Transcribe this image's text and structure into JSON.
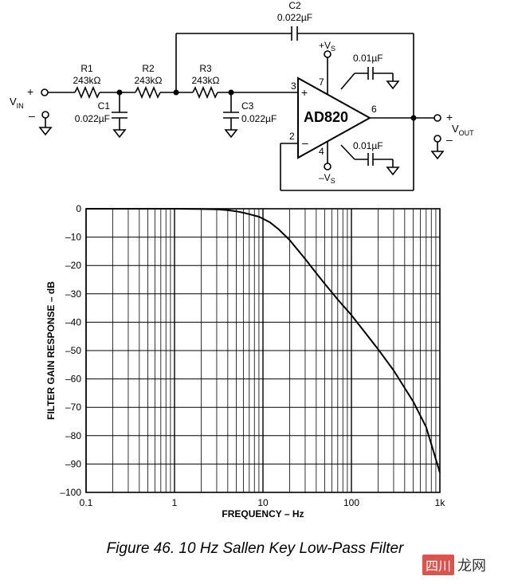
{
  "circuit": {
    "c2": {
      "name": "C2",
      "value": "0.022µF"
    },
    "r1": {
      "name": "R1",
      "value": "243kΩ"
    },
    "r2": {
      "name": "R2",
      "value": "243kΩ"
    },
    "r3": {
      "name": "R3",
      "value": "243kΩ"
    },
    "c1": {
      "name": "C1",
      "value": "0.022µF"
    },
    "c3": {
      "name": "C3",
      "value": "0.022µF"
    },
    "opamp": "AD820",
    "pins": {
      "p3": "3",
      "p2": "2",
      "p7": "7",
      "p4": "4",
      "p6": "6"
    },
    "vplus": "+V",
    "vminus": "–V",
    "supply_sub": "S",
    "decap_top": "0.01µF",
    "decap_bottom": "0.01µF",
    "vin": "V",
    "vin_sub": "IN",
    "vout": "V",
    "vout_sub": "OUT",
    "plus": "+",
    "minus": "–",
    "pin_plus": "+",
    "pin_minus": "–"
  },
  "chart_data": {
    "type": "line",
    "x_scale": "log",
    "xlim": [
      0.1,
      1000
    ],
    "ylim": [
      -100,
      0
    ],
    "xticks": [
      "0.1",
      "1",
      "10",
      "100",
      "1k"
    ],
    "yticks": [
      "0",
      "–10",
      "–20",
      "–30",
      "–40",
      "–50",
      "–60",
      "–70",
      "–80",
      "–90",
      "–100"
    ],
    "xlabel": "FREQUENCY – Hz",
    "ylabel": "FILTER GAIN RESPONSE – dB",
    "grid": true,
    "series": [
      {
        "x": [
          0.1,
          0.5,
          1,
          2,
          3,
          4,
          5,
          6,
          7,
          8,
          9,
          10,
          12,
          15,
          20,
          30,
          40,
          50,
          70,
          100,
          150,
          200,
          300,
          500,
          700,
          1000
        ],
        "y": [
          0,
          0,
          0,
          -0.1,
          -0.2,
          -0.5,
          -0.9,
          -1.4,
          -1.9,
          -2.4,
          -2.8,
          -3.5,
          -4.8,
          -7.2,
          -11,
          -17.7,
          -22.7,
          -26.5,
          -32,
          -37.5,
          -44.5,
          -49.5,
          -57,
          -68,
          -77,
          -93
        ]
      }
    ]
  },
  "caption": "Figure 46.  10 Hz Sallen Key Low-Pass Filter",
  "watermark": {
    "badge": "四川",
    "text": "龙网"
  }
}
